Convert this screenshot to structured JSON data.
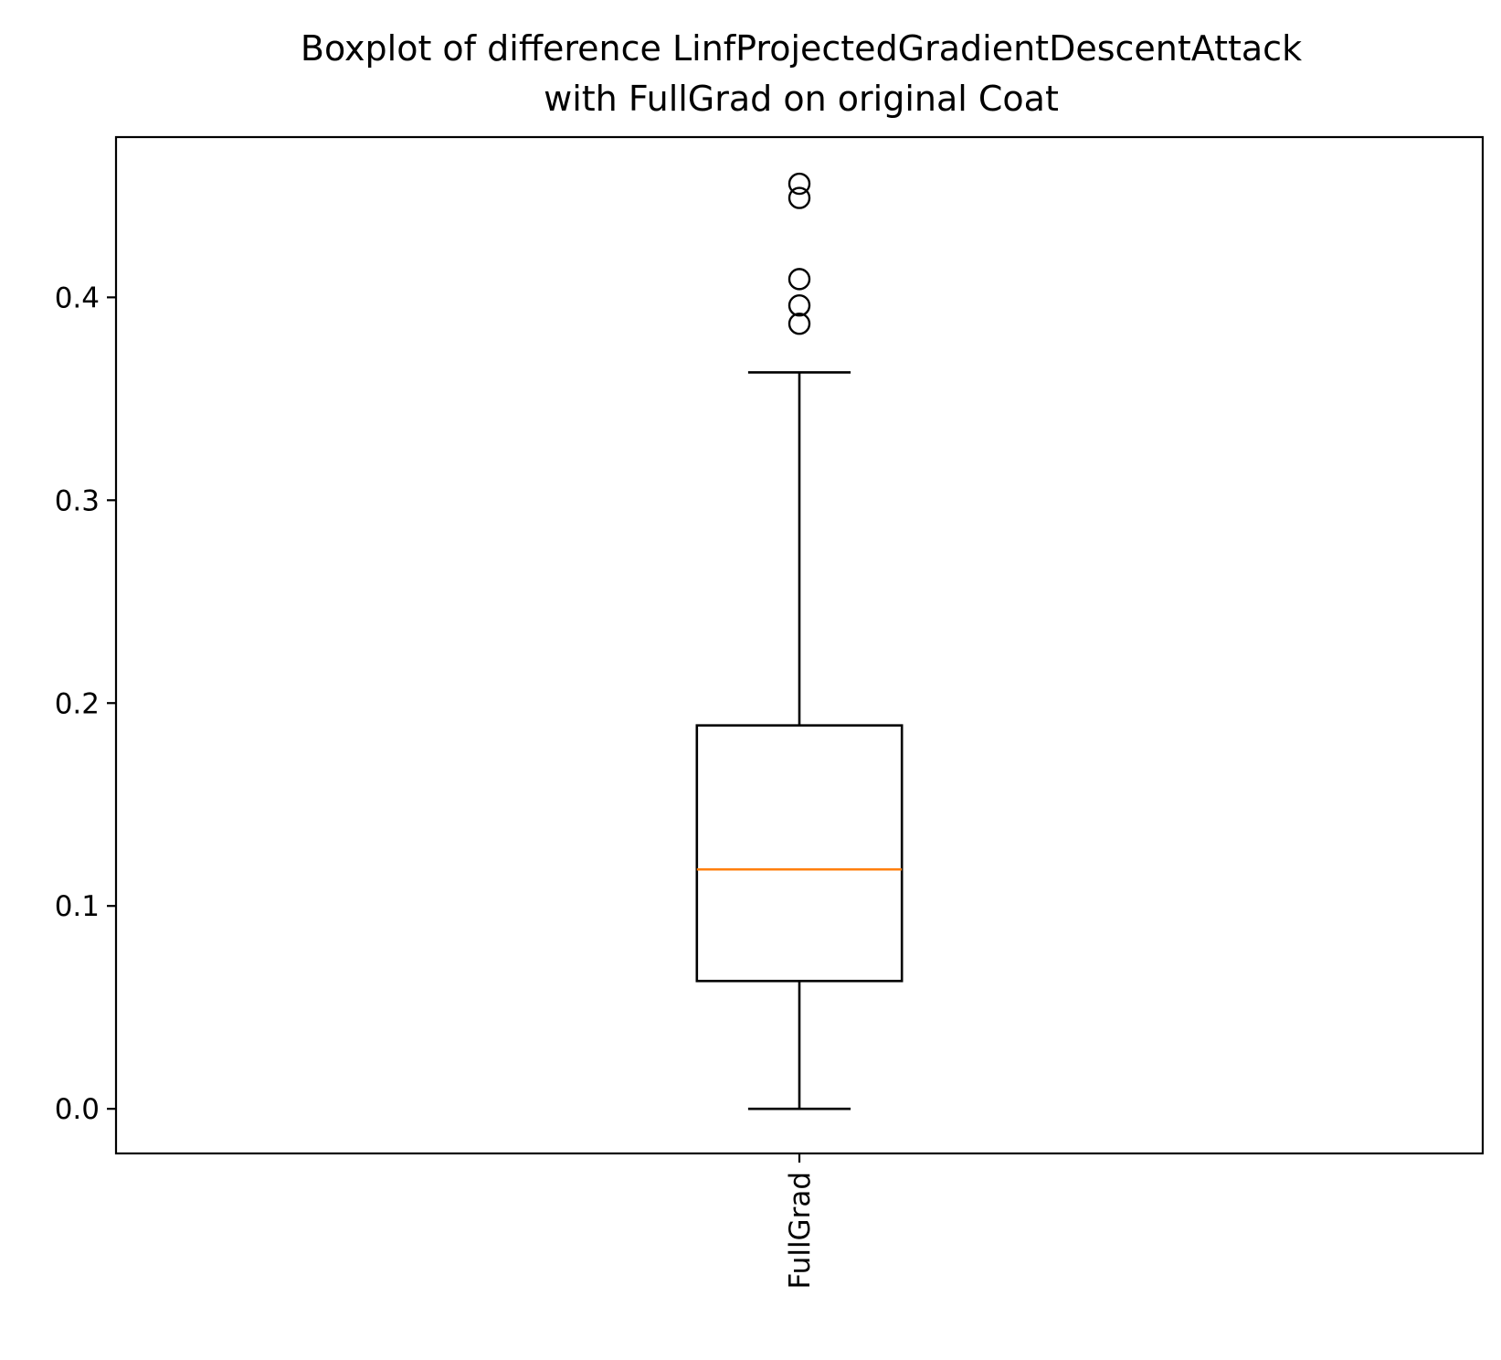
{
  "chart_data": {
    "type": "box",
    "title_lines": [
      "Boxplot of difference LinfProjectedGradientDescentAttack",
      "with FullGrad on original Coat"
    ],
    "xlabel": "",
    "ylabel": "",
    "ylim": [
      -0.022,
      0.479
    ],
    "yticks": [
      0.0,
      0.1,
      0.2,
      0.3,
      0.4
    ],
    "ytick_labels": [
      "0.0",
      "0.1",
      "0.2",
      "0.3",
      "0.4"
    ],
    "grid": false,
    "categories": [
      "FullGrad"
    ],
    "boxes": [
      {
        "name": "FullGrad",
        "whisker_low": 0.0,
        "q1": 0.063,
        "median": 0.118,
        "q3": 0.189,
        "whisker_high": 0.363,
        "outliers": [
          0.387,
          0.396,
          0.409,
          0.449,
          0.456
        ]
      }
    ],
    "colors": {
      "box": "#000000",
      "median": "#ff7f0e"
    }
  }
}
